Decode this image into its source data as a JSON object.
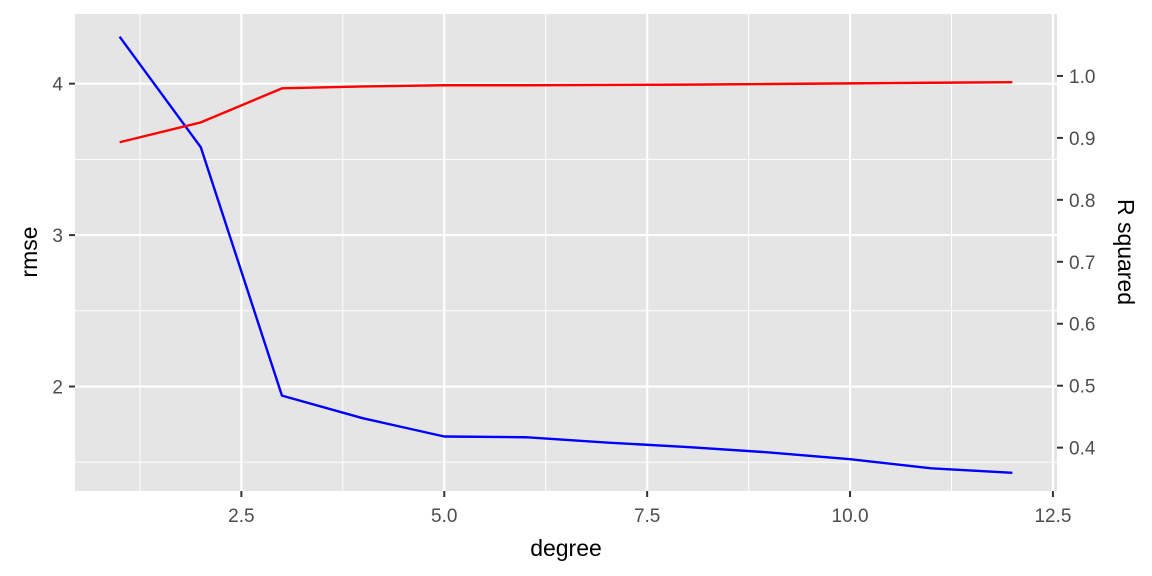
{
  "chart_data": {
    "type": "line",
    "xlabel": "degree",
    "ylabel_left": "rmse",
    "ylabel_right": "R squared",
    "x": [
      1,
      2,
      3,
      4,
      5,
      6,
      7,
      8,
      9,
      10,
      11,
      12
    ],
    "xlim": [
      0.45,
      12.55
    ],
    "ylim_left": [
      1.31,
      4.46
    ],
    "ylim_right": [
      0.33,
      1.1
    ],
    "x_ticks": [
      {
        "value": 2.5,
        "label": "2.5"
      },
      {
        "value": 5.0,
        "label": "5.0"
      },
      {
        "value": 7.5,
        "label": "7.5"
      },
      {
        "value": 10.0,
        "label": "10.0"
      },
      {
        "value": 12.5,
        "label": "12.5"
      }
    ],
    "y_left_ticks": [
      {
        "value": 2,
        "label": "2"
      },
      {
        "value": 3,
        "label": "3"
      },
      {
        "value": 4,
        "label": "4"
      }
    ],
    "y_right_ticks": [
      {
        "value": 0.4,
        "label": "0.4"
      },
      {
        "value": 0.5,
        "label": "0.5"
      },
      {
        "value": 0.6,
        "label": "0.6"
      },
      {
        "value": 0.7,
        "label": "0.7"
      },
      {
        "value": 0.8,
        "label": "0.8"
      },
      {
        "value": 0.9,
        "label": "0.9"
      },
      {
        "value": 1.0,
        "label": "1.0"
      }
    ],
    "series": [
      {
        "axis": "left",
        "color": "#0000ff",
        "values": [
          4.31,
          3.58,
          1.94,
          1.79,
          1.67,
          1.665,
          1.63,
          1.6,
          1.565,
          1.52,
          1.46,
          1.43
        ]
      },
      {
        "axis": "right",
        "color": "#ff0000",
        "values": [
          0.893,
          0.925,
          0.98,
          0.983,
          0.985,
          0.985,
          0.9855,
          0.986,
          0.987,
          0.988,
          0.989,
          0.99
        ]
      }
    ],
    "grid": true,
    "panel_background": "#e5e5e5",
    "grid_color": "#ffffff"
  }
}
